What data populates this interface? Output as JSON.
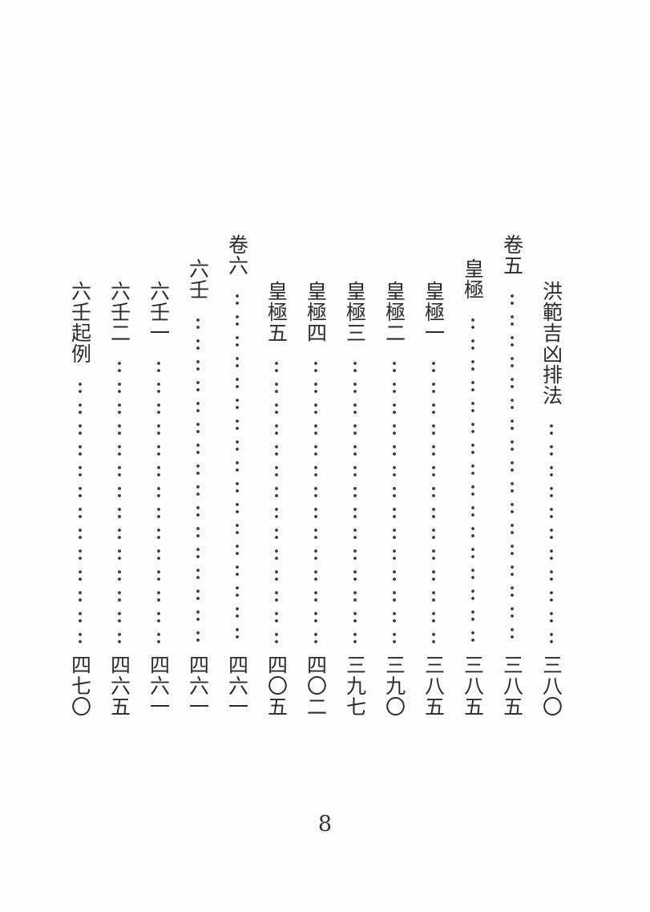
{
  "toc": {
    "ink_color": "#2b2b2b",
    "entries": [
      {
        "title": "洪範吉凶排法",
        "page": "三八〇",
        "level": 2
      },
      {
        "title": "卷五",
        "page": "三八五",
        "level": 0
      },
      {
        "title": "皇極",
        "page": "三八五",
        "level": 1
      },
      {
        "title": "皇極一",
        "page": "三八五",
        "level": 2
      },
      {
        "title": "皇極二",
        "page": "三九〇",
        "level": 2
      },
      {
        "title": "皇極三",
        "page": "三九七",
        "level": 2
      },
      {
        "title": "皇極四",
        "page": "四〇二",
        "level": 2
      },
      {
        "title": "皇極五",
        "page": "四〇五",
        "level": 2
      },
      {
        "title": "卷六",
        "page": "四六一",
        "level": 0
      },
      {
        "title": "六壬",
        "page": "四六一",
        "level": 1
      },
      {
        "title": "六壬一",
        "page": "四六一",
        "level": 2
      },
      {
        "title": "六壬二",
        "page": "四六五",
        "level": 2
      },
      {
        "title": "六壬起例",
        "page": "四七〇",
        "level": 2
      }
    ]
  },
  "page_footer": {
    "page_number": "8"
  }
}
